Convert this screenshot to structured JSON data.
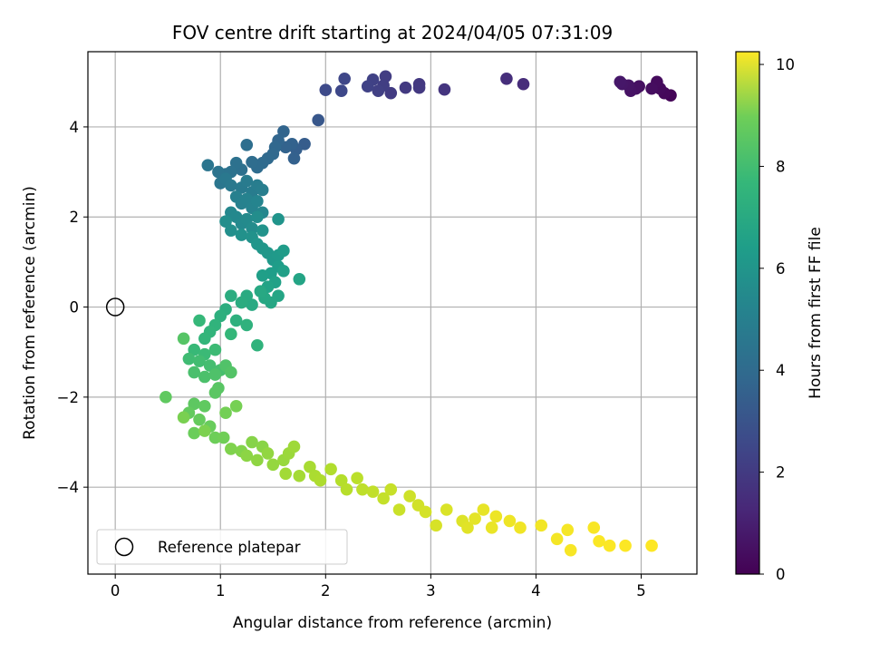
{
  "chart_data": {
    "type": "scatter",
    "title": "FOV centre drift starting at 2024/04/05 07:31:09",
    "xlabel": "Angular distance from reference (arcmin)",
    "ylabel": "Rotation from reference (arcmin)",
    "colorbar_label": "Hours from first FF file",
    "xlim": [
      -0.26,
      5.53
    ],
    "ylim": [
      -5.93,
      5.67
    ],
    "xticks": [
      0,
      1,
      2,
      3,
      4,
      5
    ],
    "yticks": [
      -4,
      -2,
      0,
      2,
      4
    ],
    "colorbar_range": [
      0,
      10.25
    ],
    "colorbar_ticks": [
      0,
      2,
      4,
      6,
      8,
      10
    ],
    "colormap": "viridis",
    "grid": true,
    "legend": {
      "placement": "lower-left",
      "entries": [
        {
          "label": "Reference platepar",
          "marker": "hollow-circle"
        }
      ]
    },
    "reference_point": {
      "x": 0,
      "y": 0
    },
    "series": [
      {
        "points": [
          [
            5.28,
            4.7,
            0.1
          ],
          [
            5.22,
            4.75,
            0.2
          ],
          [
            5.18,
            4.85,
            0.25
          ],
          [
            5.15,
            5.0,
            0.3
          ],
          [
            5.1,
            4.85,
            0.35
          ],
          [
            4.98,
            4.9,
            0.4
          ],
          [
            4.95,
            4.85,
            0.45
          ],
          [
            4.9,
            4.8,
            0.5
          ],
          [
            4.88,
            4.92,
            0.55
          ],
          [
            4.82,
            4.95,
            0.6
          ],
          [
            4.8,
            5.0,
            0.65
          ],
          [
            3.88,
            4.95,
            1.3
          ],
          [
            3.72,
            5.07,
            1.35
          ],
          [
            3.13,
            4.83,
            1.6
          ],
          [
            2.89,
            4.95,
            1.7
          ],
          [
            2.89,
            4.87,
            1.72
          ],
          [
            2.76,
            4.87,
            1.75
          ],
          [
            2.62,
            4.75,
            1.8
          ],
          [
            2.57,
            5.12,
            1.85
          ],
          [
            2.55,
            4.92,
            1.9
          ],
          [
            2.5,
            4.8,
            1.95
          ],
          [
            2.45,
            5.05,
            2.0
          ],
          [
            2.4,
            4.9,
            2.05
          ],
          [
            2.18,
            5.07,
            2.2
          ],
          [
            2.15,
            4.8,
            2.25
          ],
          [
            2.0,
            4.82,
            2.3
          ],
          [
            1.93,
            4.15,
            2.8
          ],
          [
            1.8,
            3.62,
            3.0
          ],
          [
            1.72,
            3.5,
            3.1
          ],
          [
            1.7,
            3.3,
            3.15
          ],
          [
            1.68,
            3.62,
            3.2
          ],
          [
            1.62,
            3.55,
            3.25
          ],
          [
            1.6,
            3.9,
            3.3
          ],
          [
            1.55,
            3.7,
            3.35
          ],
          [
            1.52,
            3.55,
            3.4
          ],
          [
            1.5,
            3.4,
            3.45
          ],
          [
            1.45,
            3.3,
            3.5
          ],
          [
            1.4,
            3.2,
            3.55
          ],
          [
            1.35,
            3.1,
            3.6
          ],
          [
            1.3,
            3.22,
            3.65
          ],
          [
            1.25,
            3.6,
            3.7
          ],
          [
            1.2,
            3.05,
            3.75
          ],
          [
            1.15,
            3.2,
            3.8
          ],
          [
            1.1,
            3.0,
            3.85
          ],
          [
            1.05,
            2.95,
            3.9
          ],
          [
            0.98,
            3.0,
            3.95
          ],
          [
            0.88,
            3.15,
            4.0
          ],
          [
            1.0,
            2.75,
            4.05
          ],
          [
            1.05,
            2.85,
            4.1
          ],
          [
            1.1,
            2.7,
            4.15
          ],
          [
            1.2,
            2.65,
            4.2
          ],
          [
            1.25,
            2.8,
            4.25
          ],
          [
            1.3,
            2.55,
            4.3
          ],
          [
            1.35,
            2.7,
            4.35
          ],
          [
            1.4,
            2.6,
            4.4
          ],
          [
            1.15,
            2.45,
            4.45
          ],
          [
            1.2,
            2.3,
            4.5
          ],
          [
            1.25,
            2.4,
            4.55
          ],
          [
            1.3,
            2.2,
            4.6
          ],
          [
            1.35,
            2.35,
            4.65
          ],
          [
            1.4,
            2.1,
            4.7
          ],
          [
            1.1,
            2.1,
            4.75
          ],
          [
            1.15,
            2.0,
            4.8
          ],
          [
            1.2,
            1.85,
            4.85
          ],
          [
            1.25,
            1.95,
            4.9
          ],
          [
            1.3,
            1.75,
            4.95
          ],
          [
            1.35,
            2.0,
            5.0
          ],
          [
            1.05,
            1.9,
            5.05
          ],
          [
            1.1,
            1.7,
            5.1
          ],
          [
            1.2,
            1.6,
            5.15
          ],
          [
            1.3,
            1.55,
            5.2
          ],
          [
            1.4,
            1.7,
            5.25
          ],
          [
            1.55,
            1.95,
            5.3
          ],
          [
            1.35,
            1.4,
            5.35
          ],
          [
            1.4,
            1.3,
            5.4
          ],
          [
            1.45,
            1.2,
            5.45
          ],
          [
            1.5,
            1.05,
            5.5
          ],
          [
            1.55,
            1.15,
            5.55
          ],
          [
            1.6,
            1.25,
            5.6
          ],
          [
            1.55,
            0.9,
            5.65
          ],
          [
            1.48,
            0.75,
            5.7
          ],
          [
            1.4,
            0.7,
            5.75
          ],
          [
            1.6,
            0.8,
            5.8
          ],
          [
            1.52,
            0.55,
            5.85
          ],
          [
            1.45,
            0.45,
            5.9
          ],
          [
            1.75,
            0.62,
            5.95
          ],
          [
            1.55,
            0.25,
            6.0
          ],
          [
            1.48,
            0.1,
            6.05
          ],
          [
            1.42,
            0.2,
            6.1
          ],
          [
            1.38,
            0.35,
            6.15
          ],
          [
            1.3,
            0.05,
            6.2
          ],
          [
            1.25,
            0.25,
            6.25
          ],
          [
            1.2,
            0.1,
            6.3
          ],
          [
            1.1,
            0.25,
            6.35
          ],
          [
            1.05,
            -0.05,
            6.4
          ],
          [
            1.0,
            -0.2,
            6.45
          ],
          [
            1.15,
            -0.3,
            6.5
          ],
          [
            1.25,
            -0.4,
            6.55
          ],
          [
            1.35,
            -0.85,
            6.6
          ],
          [
            0.95,
            -0.4,
            6.65
          ],
          [
            0.9,
            -0.55,
            6.7
          ],
          [
            0.85,
            -0.7,
            6.75
          ],
          [
            1.1,
            -0.6,
            6.8
          ],
          [
            0.8,
            -0.3,
            6.85
          ],
          [
            0.75,
            -0.95,
            6.9
          ],
          [
            0.85,
            -1.05,
            6.95
          ],
          [
            0.95,
            -0.95,
            7.0
          ],
          [
            0.7,
            -1.15,
            7.05
          ],
          [
            0.8,
            -1.2,
            7.1
          ],
          [
            0.9,
            -1.3,
            7.15
          ],
          [
            1.0,
            -1.4,
            7.2
          ],
          [
            0.75,
            -1.45,
            7.25
          ],
          [
            0.85,
            -1.55,
            7.3
          ],
          [
            0.95,
            -1.5,
            7.35
          ],
          [
            1.05,
            -1.3,
            7.4
          ],
          [
            1.1,
            -1.45,
            7.45
          ],
          [
            0.65,
            -0.7,
            7.5
          ],
          [
            0.98,
            -1.8,
            7.55
          ],
          [
            0.95,
            -1.9,
            7.6
          ],
          [
            0.75,
            -2.15,
            7.65
          ],
          [
            0.85,
            -2.2,
            7.7
          ],
          [
            0.7,
            -2.35,
            7.75
          ],
          [
            0.8,
            -2.5,
            7.8
          ],
          [
            0.9,
            -2.65,
            7.85
          ],
          [
            0.75,
            -2.8,
            7.9
          ],
          [
            0.95,
            -2.9,
            7.95
          ],
          [
            1.03,
            -2.9,
            8.0
          ],
          [
            1.05,
            -2.35,
            8.05
          ],
          [
            1.15,
            -2.2,
            8.1
          ],
          [
            0.48,
            -2.0,
            7.7
          ],
          [
            0.65,
            -2.45,
            8.15
          ],
          [
            0.85,
            -2.75,
            8.2
          ],
          [
            1.1,
            -3.15,
            8.25
          ],
          [
            1.2,
            -3.2,
            8.3
          ],
          [
            1.3,
            -3.0,
            8.35
          ],
          [
            1.4,
            -3.1,
            8.4
          ],
          [
            1.25,
            -3.3,
            8.45
          ],
          [
            1.35,
            -3.4,
            8.5
          ],
          [
            1.45,
            -3.25,
            8.55
          ],
          [
            1.5,
            -3.5,
            8.6
          ],
          [
            1.6,
            -3.4,
            8.65
          ],
          [
            1.65,
            -3.25,
            8.7
          ],
          [
            1.7,
            -3.1,
            8.75
          ],
          [
            1.62,
            -3.7,
            8.8
          ],
          [
            1.75,
            -3.75,
            8.85
          ],
          [
            1.85,
            -3.55,
            8.9
          ],
          [
            1.9,
            -3.75,
            8.95
          ],
          [
            1.95,
            -3.85,
            9.0
          ],
          [
            2.05,
            -3.6,
            9.05
          ],
          [
            2.15,
            -3.85,
            9.1
          ],
          [
            2.2,
            -4.05,
            9.15
          ],
          [
            2.3,
            -3.8,
            9.2
          ],
          [
            2.35,
            -4.05,
            9.25
          ],
          [
            2.45,
            -4.1,
            9.3
          ],
          [
            2.55,
            -4.25,
            9.35
          ],
          [
            2.62,
            -4.05,
            9.4
          ],
          [
            2.7,
            -4.5,
            9.45
          ],
          [
            2.8,
            -4.2,
            9.5
          ],
          [
            2.88,
            -4.4,
            9.55
          ],
          [
            2.95,
            -4.55,
            9.6
          ],
          [
            3.05,
            -4.85,
            9.65
          ],
          [
            3.15,
            -4.5,
            9.7
          ],
          [
            3.3,
            -4.75,
            9.75
          ],
          [
            3.35,
            -4.9,
            9.8
          ],
          [
            3.42,
            -4.7,
            9.85
          ],
          [
            3.5,
            -4.5,
            9.9
          ],
          [
            3.58,
            -4.9,
            9.95
          ],
          [
            3.62,
            -4.65,
            10.0
          ],
          [
            3.75,
            -4.75,
            10.02
          ],
          [
            3.85,
            -4.9,
            10.05
          ],
          [
            4.05,
            -4.85,
            10.08
          ],
          [
            4.2,
            -5.15,
            10.1
          ],
          [
            4.3,
            -4.95,
            10.12
          ],
          [
            4.33,
            -5.4,
            10.15
          ],
          [
            4.55,
            -4.9,
            10.17
          ],
          [
            4.6,
            -5.2,
            10.2
          ],
          [
            4.7,
            -5.3,
            10.22
          ],
          [
            4.85,
            -5.3,
            10.23
          ],
          [
            5.1,
            -5.3,
            10.25
          ]
        ]
      }
    ]
  }
}
